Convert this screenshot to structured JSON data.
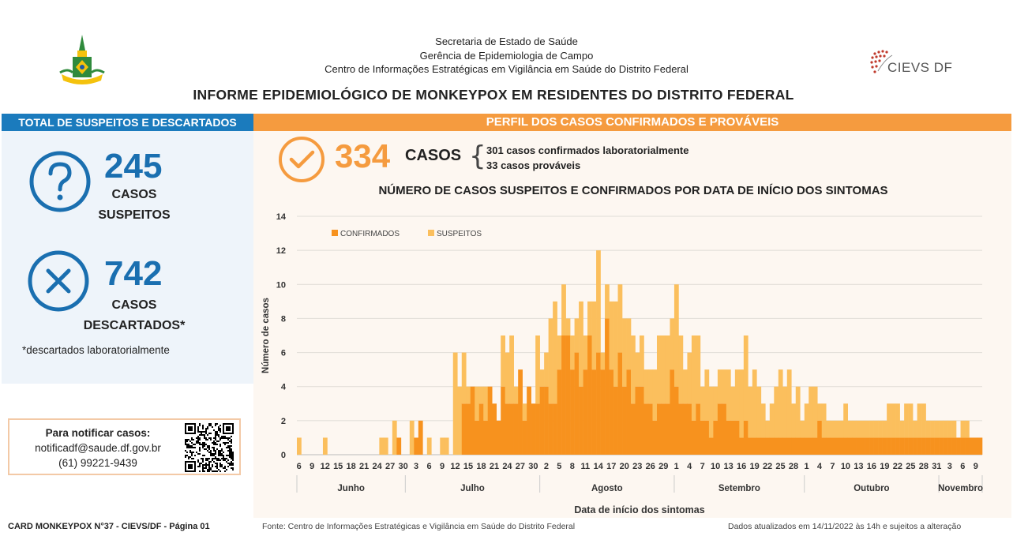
{
  "header": {
    "lines": [
      "Secretaria de Estado de Saúde",
      "Gerência de Epidemiologia de Campo",
      "Centro de Informações Estratégicas em Vigilância em Saúde do Distrito Federal"
    ],
    "title": "INFORME EPIDEMIOLÓGICO DE MONKEYPOX EM RESIDENTES DO DISTRITO FEDERAL",
    "cievs_logo_text": "CIEVS DF",
    "gdf_logo_icon": "gdf-coat-of-arms"
  },
  "left_panel": {
    "bar_title": "TOTAL DE SUSPEITOS E DESCARTADOS",
    "suspects": {
      "number": "245",
      "label1": "CASOS",
      "label2": "SUSPEITOS",
      "icon": "question-icon"
    },
    "discarded": {
      "number": "742",
      "label1": "CASOS",
      "label2": "DESCARTADOS*",
      "icon": "x-icon"
    },
    "footnote": "*descartados laboratorialmente"
  },
  "notify": {
    "line1": "Para notificar casos:",
    "line2": "notificadf@saude.df.gov.br",
    "line3": "(61) 99221-9439",
    "qr_icon": "qr-code-icon"
  },
  "right_panel": {
    "bar_title": "PERFIL DOS CASOS CONFIRMADOS E PROVÁVEIS",
    "total": "334",
    "cases_word": "CASOS",
    "detail1": "301 casos confirmados laboratorialmente",
    "detail2": "33 casos prováveis",
    "check_icon": "checkmark-circle-icon"
  },
  "chart_data": {
    "type": "bar",
    "stacked": true,
    "title": "NÚMERO DE CASOS SUSPEITOS E CONFIRMADOS POR DATA DE INÍCIO DOS SINTOMAS",
    "xlabel": "Data de início dos sintomas",
    "ylabel": "Número de casos",
    "ylim": [
      0,
      14
    ],
    "yticks": [
      0,
      2,
      4,
      6,
      8,
      10,
      12,
      14
    ],
    "grid": true,
    "legend_position": "top-left",
    "colors": {
      "CONFIRMADOS": "#f7921e",
      "SUSPEITOS": "#fbbf5d"
    },
    "x_start_date": "2022-06-06",
    "x_end_date": "2022-11-10",
    "xtick_labels": [
      {
        "date": "2022-06-06",
        "label": "6"
      },
      {
        "date": "2022-06-09",
        "label": "9"
      },
      {
        "date": "2022-06-12",
        "label": "12"
      },
      {
        "date": "2022-06-15",
        "label": "15"
      },
      {
        "date": "2022-06-18",
        "label": "18"
      },
      {
        "date": "2022-06-21",
        "label": "21"
      },
      {
        "date": "2022-06-24",
        "label": "24"
      },
      {
        "date": "2022-06-27",
        "label": "27"
      },
      {
        "date": "2022-06-30",
        "label": "30"
      },
      {
        "date": "2022-07-03",
        "label": "3"
      },
      {
        "date": "2022-07-06",
        "label": "6"
      },
      {
        "date": "2022-07-09",
        "label": "9"
      },
      {
        "date": "2022-07-12",
        "label": "12"
      },
      {
        "date": "2022-07-15",
        "label": "15"
      },
      {
        "date": "2022-07-18",
        "label": "18"
      },
      {
        "date": "2022-07-21",
        "label": "21"
      },
      {
        "date": "2022-07-24",
        "label": "24"
      },
      {
        "date": "2022-07-27",
        "label": "27"
      },
      {
        "date": "2022-07-30",
        "label": "30"
      },
      {
        "date": "2022-08-02",
        "label": "2"
      },
      {
        "date": "2022-08-05",
        "label": "5"
      },
      {
        "date": "2022-08-08",
        "label": "8"
      },
      {
        "date": "2022-08-11",
        "label": "11"
      },
      {
        "date": "2022-08-14",
        "label": "14"
      },
      {
        "date": "2022-08-17",
        "label": "17"
      },
      {
        "date": "2022-08-20",
        "label": "20"
      },
      {
        "date": "2022-08-23",
        "label": "23"
      },
      {
        "date": "2022-08-26",
        "label": "26"
      },
      {
        "date": "2022-08-29",
        "label": "29"
      },
      {
        "date": "2022-09-01",
        "label": "1"
      },
      {
        "date": "2022-09-04",
        "label": "4"
      },
      {
        "date": "2022-09-07",
        "label": "7"
      },
      {
        "date": "2022-09-10",
        "label": "10"
      },
      {
        "date": "2022-09-13",
        "label": "13"
      },
      {
        "date": "2022-09-16",
        "label": "16"
      },
      {
        "date": "2022-09-19",
        "label": "19"
      },
      {
        "date": "2022-09-22",
        "label": "22"
      },
      {
        "date": "2022-09-25",
        "label": "25"
      },
      {
        "date": "2022-09-28",
        "label": "28"
      },
      {
        "date": "2022-10-01",
        "label": "1"
      },
      {
        "date": "2022-10-04",
        "label": "4"
      },
      {
        "date": "2022-10-07",
        "label": "7"
      },
      {
        "date": "2022-10-10",
        "label": "10"
      },
      {
        "date": "2022-10-13",
        "label": "13"
      },
      {
        "date": "2022-10-16",
        "label": "16"
      },
      {
        "date": "2022-10-19",
        "label": "19"
      },
      {
        "date": "2022-10-22",
        "label": "22"
      },
      {
        "date": "2022-10-25",
        "label": "25"
      },
      {
        "date": "2022-10-28",
        "label": "28"
      },
      {
        "date": "2022-10-31",
        "label": "31"
      },
      {
        "date": "2022-11-03",
        "label": "3"
      },
      {
        "date": "2022-11-06",
        "label": "6"
      },
      {
        "date": "2022-11-09",
        "label": "9"
      }
    ],
    "months": [
      {
        "label": "Junho",
        "start": "2022-06-06",
        "end": "2022-06-30"
      },
      {
        "label": "Julho",
        "start": "2022-07-01",
        "end": "2022-07-31"
      },
      {
        "label": "Agosto",
        "start": "2022-08-01",
        "end": "2022-08-31"
      },
      {
        "label": "Setembro",
        "start": "2022-09-01",
        "end": "2022-09-30"
      },
      {
        "label": "Outubro",
        "start": "2022-10-01",
        "end": "2022-10-31"
      },
      {
        "label": "Novembro",
        "start": "2022-11-01",
        "end": "2022-11-10"
      }
    ],
    "series": [
      {
        "name": "CONFIRMADOS",
        "values": [
          0,
          0,
          0,
          0,
          0,
          0,
          0,
          0,
          0,
          0,
          0,
          0,
          0,
          0,
          0,
          0,
          0,
          0,
          0,
          0,
          0,
          0,
          0,
          1,
          0,
          0,
          0,
          1,
          2,
          0,
          0,
          0,
          0,
          0,
          0,
          0,
          0,
          0,
          3,
          3,
          4,
          2,
          3,
          2,
          4,
          3,
          2,
          4,
          3,
          3,
          3,
          5,
          2,
          4,
          3,
          3,
          4,
          4,
          3,
          3,
          5,
          7,
          7,
          5,
          6,
          4,
          5,
          7,
          5,
          6,
          5,
          8,
          5,
          4,
          6,
          4,
          5,
          3,
          4,
          4,
          3,
          3,
          2,
          3,
          3,
          3,
          5,
          4,
          3,
          3,
          3,
          2,
          3,
          2,
          2,
          1,
          2,
          3,
          3,
          2,
          2,
          2,
          1,
          2,
          1,
          1,
          1,
          1,
          1,
          1,
          1,
          1,
          1,
          1,
          1,
          1,
          1,
          1,
          1,
          1,
          2,
          1,
          1,
          1,
          1,
          1,
          1,
          1,
          1,
          1,
          1,
          1,
          1,
          1,
          1,
          1,
          1,
          1,
          1,
          1,
          1,
          1,
          1,
          1,
          1,
          1,
          1,
          1,
          1,
          1,
          1,
          1,
          1,
          1,
          1,
          1,
          1,
          1
        ]
      },
      {
        "name": "SUSPEITOS",
        "values": [
          1,
          0,
          0,
          0,
          0,
          0,
          1,
          0,
          0,
          0,
          0,
          0,
          0,
          0,
          0,
          0,
          0,
          0,
          0,
          1,
          1,
          0,
          2,
          0,
          0,
          0,
          2,
          0,
          0,
          0,
          1,
          0,
          0,
          1,
          1,
          0,
          6,
          4,
          3,
          1,
          0,
          2,
          1,
          2,
          0,
          0,
          0,
          3,
          3,
          4,
          1,
          0,
          1,
          0,
          0,
          4,
          1,
          2,
          5,
          6,
          2,
          3,
          1,
          2,
          2,
          5,
          2,
          2,
          4,
          6,
          1,
          2,
          4,
          5,
          4,
          4,
          3,
          4,
          2,
          3,
          2,
          2,
          3,
          4,
          4,
          4,
          3,
          6,
          4,
          2,
          3,
          5,
          4,
          2,
          3,
          3,
          2,
          2,
          2,
          3,
          2,
          3,
          4,
          5,
          3,
          4,
          3,
          2,
          1,
          2,
          3,
          4,
          3,
          4,
          2,
          3,
          1,
          2,
          3,
          3,
          1,
          2,
          1,
          1,
          1,
          1,
          2,
          1,
          1,
          1,
          1,
          1,
          1,
          1,
          1,
          1,
          2,
          2,
          2,
          1,
          2,
          2,
          1,
          2,
          2,
          1,
          1,
          1,
          1,
          1,
          1,
          1,
          0,
          1,
          1,
          0,
          0,
          0
        ]
      }
    ]
  },
  "footer": {
    "left": "CARD MONKEYPOX N°37 - CIEVS/DF - Página 01",
    "middle": "Fonte: Centro de Informações Estratégicas e Vigilância em Saúde do Distrito Federal",
    "right": "Dados atualizados em 14/11/2022 às 14h e sujeitos a alteração"
  }
}
